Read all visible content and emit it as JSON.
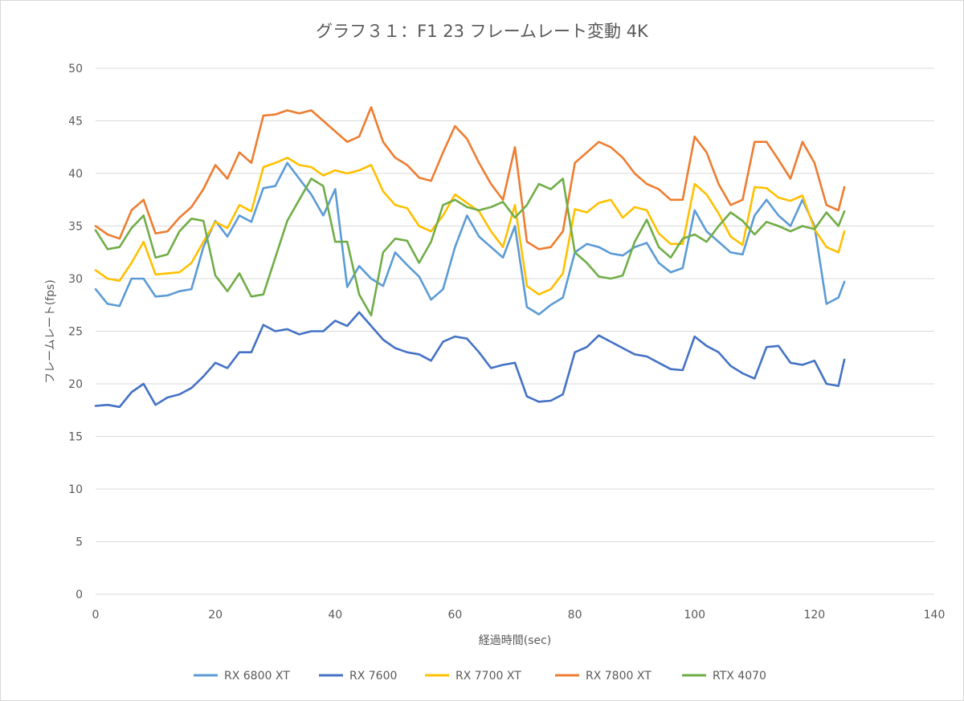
{
  "chart_data": {
    "type": "line",
    "title": "グラフ３１：F1 23 フレームレート変動 4K",
    "xlabel": "経過時間(sec)",
    "ylabel": "フレームレート(fps)",
    "xlim": [
      0,
      140
    ],
    "ylim": [
      0,
      50
    ],
    "x_ticks": [
      0,
      20,
      40,
      60,
      80,
      100,
      120,
      140
    ],
    "y_ticks": [
      0,
      5,
      10,
      15,
      20,
      25,
      30,
      35,
      40,
      45,
      50
    ],
    "grid": "horizontal",
    "legend_position": "bottom",
    "x": [
      0,
      2,
      4,
      6,
      8,
      10,
      12,
      14,
      16,
      18,
      20,
      22,
      24,
      26,
      28,
      30,
      32,
      34,
      36,
      38,
      40,
      42,
      44,
      46,
      48,
      50,
      52,
      54,
      56,
      58,
      60,
      62,
      64,
      66,
      68,
      70,
      72,
      74,
      76,
      78,
      80,
      82,
      84,
      86,
      88,
      90,
      92,
      94,
      96,
      98,
      100,
      102,
      104,
      106,
      108,
      110,
      112,
      114,
      116,
      118,
      120,
      122,
      124,
      125
    ],
    "series": [
      {
        "name": "RX 6800 XT",
        "color": "#5b9bd5",
        "values": [
          29,
          27.6,
          27.4,
          30,
          30,
          28.3,
          28.4,
          28.8,
          29,
          33,
          35.5,
          34,
          36,
          35.4,
          38.6,
          38.8,
          41,
          39.5,
          38,
          36,
          38.5,
          29.2,
          31.2,
          30,
          29.3,
          32.5,
          31.3,
          30.2,
          28,
          29,
          33,
          36,
          34,
          33,
          32,
          35,
          27.3,
          26.6,
          27.5,
          28.2,
          32.5,
          33.3,
          33,
          32.4,
          32.2,
          33,
          33.4,
          31.5,
          30.6,
          31,
          36.5,
          34.5,
          33.5,
          32.5,
          32.3,
          36,
          37.5,
          36,
          35,
          37.5,
          35,
          27.6,
          28.2,
          29.7
        ]
      },
      {
        "name": "RX 7600",
        "color": "#4472c4",
        "values": [
          17.9,
          18,
          17.8,
          19.2,
          20,
          18,
          18.7,
          19,
          19.6,
          20.7,
          22,
          21.5,
          23,
          23,
          25.6,
          25,
          25.2,
          24.7,
          25,
          25,
          26,
          25.5,
          26.8,
          25.5,
          24.2,
          23.4,
          23,
          22.8,
          22.2,
          24,
          24.5,
          24.3,
          23,
          21.5,
          21.8,
          22,
          18.8,
          18.3,
          18.4,
          19,
          23,
          23.5,
          24.6,
          24,
          23.4,
          22.8,
          22.6,
          22,
          21.4,
          21.3,
          24.5,
          23.6,
          23,
          21.7,
          21,
          20.5,
          23.5,
          23.6,
          22,
          21.8,
          22.2,
          20,
          19.8,
          22.3
        ]
      },
      {
        "name": "RX 7700 XT",
        "color": "#ffc000",
        "values": [
          30.8,
          30,
          29.8,
          31.5,
          33.5,
          30.4,
          30.5,
          30.6,
          31.5,
          33.5,
          35.4,
          34.8,
          37,
          36.4,
          40.6,
          41,
          41.5,
          40.8,
          40.6,
          39.8,
          40.3,
          40,
          40.3,
          40.8,
          38.3,
          37,
          36.7,
          35,
          34.5,
          36,
          38,
          37.2,
          36.4,
          34.5,
          33,
          37,
          29.3,
          28.5,
          29,
          30.5,
          36.6,
          36.3,
          37.2,
          37.5,
          35.8,
          36.8,
          36.5,
          34.3,
          33.3,
          33.3,
          39,
          38,
          36.2,
          34,
          33.2,
          38.7,
          38.6,
          37.7,
          37.4,
          37.9,
          34.7,
          33,
          32.5,
          34.5
        ]
      },
      {
        "name": "RX 7800 XT",
        "color": "#ed7d31",
        "values": [
          35,
          34.2,
          33.8,
          36.5,
          37.5,
          34.3,
          34.5,
          35.8,
          36.8,
          38.5,
          40.8,
          39.5,
          42,
          41,
          45.5,
          45.6,
          46,
          45.7,
          46,
          45,
          44,
          43,
          43.5,
          46.3,
          43,
          41.5,
          40.8,
          39.6,
          39.3,
          42,
          44.5,
          43.3,
          41,
          39,
          37.5,
          42.5,
          33.5,
          32.8,
          33,
          34.5,
          41,
          42,
          43,
          42.5,
          41.5,
          40,
          39,
          38.5,
          37.5,
          37.5,
          43.5,
          42,
          39,
          37,
          37.5,
          43,
          43,
          41.3,
          39.5,
          43,
          41,
          37,
          36.5,
          38.7
        ]
      },
      {
        "name": "RTX 4070",
        "color": "#70ad47",
        "values": [
          34.6,
          32.8,
          33,
          34.8,
          36,
          32,
          32.3,
          34.5,
          35.7,
          35.5,
          30.3,
          28.8,
          30.5,
          28.3,
          28.5,
          32,
          35.5,
          37.5,
          39.5,
          38.8,
          33.5,
          33.5,
          28.5,
          26.5,
          32.5,
          33.8,
          33.6,
          31.5,
          33.5,
          37,
          37.5,
          36.8,
          36.5,
          36.8,
          37.3,
          35.8,
          37,
          39,
          38.5,
          39.5,
          32.5,
          31.5,
          30.2,
          30,
          30.3,
          33.5,
          35.6,
          33,
          32,
          33.8,
          34.2,
          33.5,
          35,
          36.3,
          35.5,
          34.2,
          35.4,
          35,
          34.5,
          35,
          34.7,
          36.3,
          35,
          36.4
        ]
      }
    ]
  }
}
